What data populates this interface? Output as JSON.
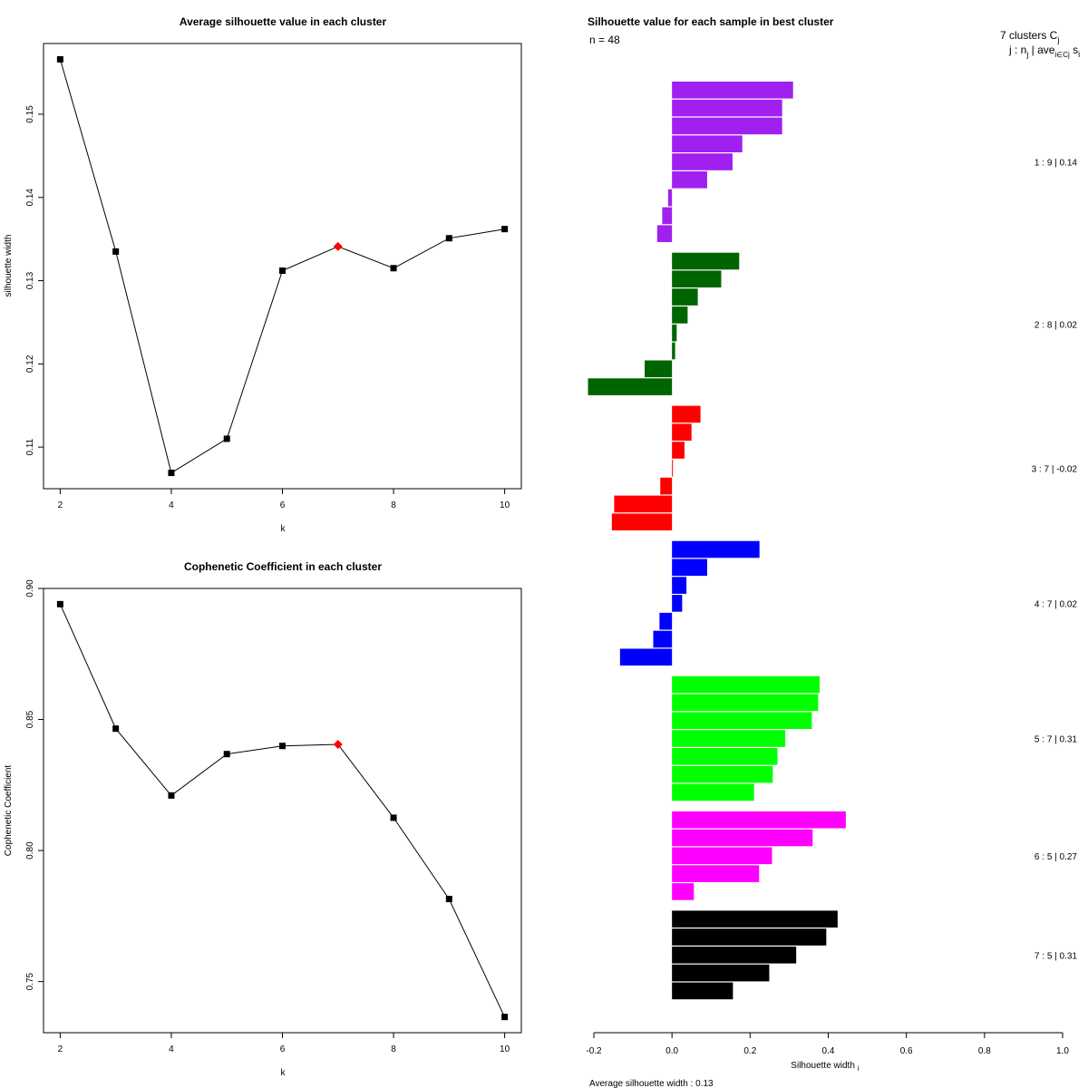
{
  "chart_data": [
    {
      "id": "silhouette_avg",
      "type": "line",
      "title": "Average silhouette value in each cluster",
      "xlabel": "k",
      "ylabel": "silhouette width",
      "x": [
        2,
        3,
        4,
        5,
        6,
        7,
        8,
        9,
        10
      ],
      "y": [
        0.1566,
        0.1335,
        0.1069,
        0.111,
        0.1312,
        0.1341,
        0.1315,
        0.1351,
        0.1362
      ],
      "highlight_x": 7,
      "highlight_color": "#ff0000",
      "xlim": [
        1.7,
        10.3
      ],
      "ylim": [
        0.105,
        0.1585
      ],
      "xticks": [
        2,
        4,
        6,
        8,
        10
      ],
      "xtick_labels": [
        "2",
        "4",
        "6",
        "8",
        "10"
      ],
      "yticks": [
        0.11,
        0.12,
        0.13,
        0.14,
        0.15
      ],
      "ytick_labels": [
        "0.11",
        "0.12",
        "0.13",
        "0.14",
        "0.15"
      ]
    },
    {
      "id": "cophenetic",
      "type": "line",
      "title": "Cophenetic Coefficient in each cluster",
      "xlabel": "k",
      "ylabel": "Cophenetic Coefficient",
      "x": [
        2,
        3,
        4,
        5,
        6,
        7,
        8,
        9,
        10
      ],
      "y": [
        0.894,
        0.8465,
        0.821,
        0.8368,
        0.8399,
        0.8405,
        0.8125,
        0.7815,
        0.7365
      ],
      "highlight_x": 7,
      "highlight_color": "#ff0000",
      "xlim": [
        1.7,
        10.3
      ],
      "ylim": [
        0.7305,
        0.9
      ],
      "xticks": [
        2,
        4,
        6,
        8,
        10
      ],
      "xtick_labels": [
        "2",
        "4",
        "6",
        "8",
        "10"
      ],
      "yticks": [
        0.75,
        0.8,
        0.85,
        0.9
      ],
      "ytick_labels": [
        "0.75",
        "0.80",
        "0.85",
        "0.90"
      ]
    },
    {
      "id": "silhouette_samples",
      "type": "bar",
      "orientation": "horizontal",
      "title": "Silhouette value for each sample in best cluster",
      "n_label": "n = 48",
      "xlabel": "Silhouette width",
      "xlabel_sub": "i",
      "xlim": [
        -0.2,
        1.0
      ],
      "xticks": [
        -0.2,
        0.0,
        0.2,
        0.4,
        0.6,
        0.8,
        1.0
      ],
      "xtick_labels": [
        "-0.2",
        "0.0",
        "0.2",
        "0.4",
        "0.6",
        "0.8",
        "1.0"
      ],
      "legend_head_1": "7 clusters C",
      "legend_head_1_sub": "j",
      "legend_head_2": "j :  n",
      "legend_head_2_sub": "j",
      "legend_head_2b": " | ave",
      "legend_head_2b_sub": "i∈Cj",
      "legend_head_2c": " s",
      "legend_head_2c_sub": "i",
      "avg_text": "Average silhouette width :  0.13",
      "clusters": [
        {
          "label": "1 :  9  |  0.14",
          "color": "#a020f0",
          "values": [
            0.31,
            0.282,
            0.282,
            0.18,
            0.155,
            0.09,
            -0.01,
            -0.025,
            -0.038
          ]
        },
        {
          "label": "2 :  8  |  0.02",
          "color": "#006400",
          "values": [
            0.172,
            0.126,
            0.066,
            0.04,
            0.012,
            0.008,
            -0.07,
            -0.215
          ]
        },
        {
          "label": "3 :  7  |  -0.02",
          "color": "#ff0000",
          "values": [
            0.073,
            0.05,
            0.032,
            0.002,
            -0.03,
            -0.148,
            -0.154
          ]
        },
        {
          "label": "4 :  7  |  0.02",
          "color": "#0000ff",
          "values": [
            0.224,
            0.09,
            0.037,
            0.026,
            -0.032,
            -0.048,
            -0.133
          ]
        },
        {
          "label": "5 :  7  |  0.31",
          "color": "#00ff00",
          "values": [
            0.378,
            0.374,
            0.358,
            0.29,
            0.27,
            0.258,
            0.21
          ]
        },
        {
          "label": "6 :  5  |  0.27",
          "color": "#ff00ff",
          "values": [
            0.445,
            0.36,
            0.256,
            0.223,
            0.056
          ]
        },
        {
          "label": "7 :  5  |  0.31",
          "color": "#000000",
          "values": [
            0.424,
            0.395,
            0.318,
            0.249,
            0.156
          ]
        }
      ]
    }
  ]
}
